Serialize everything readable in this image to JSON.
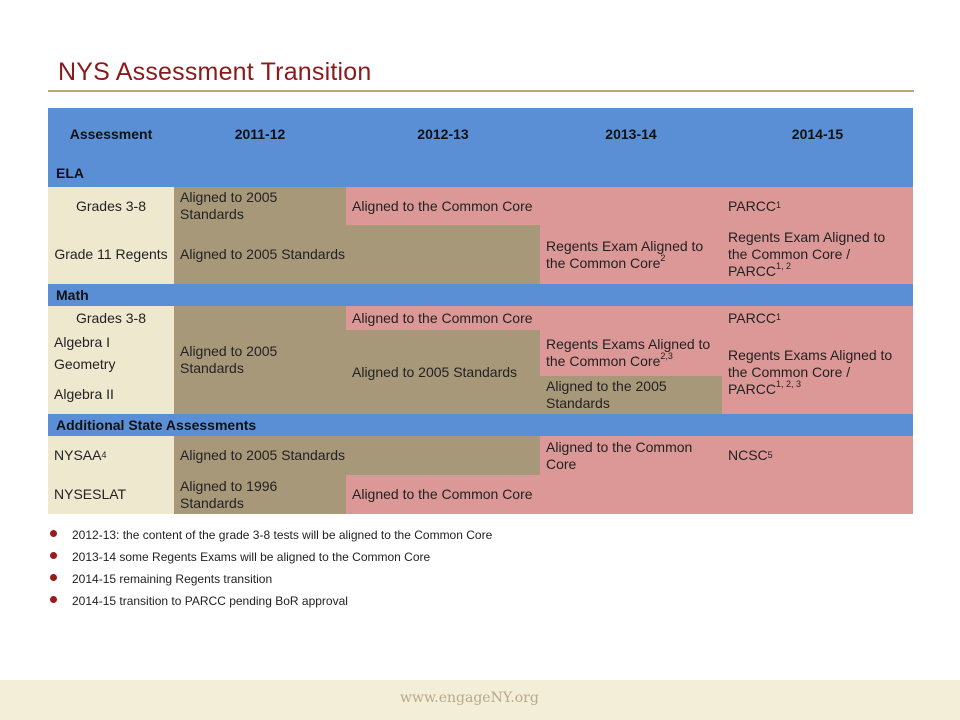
{
  "slide": {
    "title": "NYS Assessment Transition",
    "footer_url": "www.engageNY.org"
  },
  "table": {
    "headers": [
      "Assessment",
      "2011-12",
      "2012-13",
      "2013-14",
      "2014-15"
    ],
    "sections": {
      "ela": "ELA",
      "math": "Math",
      "additional": "Additional  State Assessments"
    },
    "rows": {
      "ela_grades": {
        "label": "Grades 3-8",
        "c1": "Aligned to 2005 Standards",
        "c2": "Aligned to the Common Core",
        "c4": "PARCC",
        "c4_sup": "1"
      },
      "ela_regents": {
        "label": "Grade 11 Regents",
        "c1": "Aligned to 2005 Standards",
        "c3": "Regents Exam Aligned to the Common Core",
        "c3_sup": "2",
        "c4": "Regents Exam Aligned to the Common Core / PARCC",
        "c4_sup": "1, 2"
      },
      "math_grades": {
        "label": "Grades 3-8",
        "c2": "Aligned to the Common Core",
        "c4": "PARCC",
        "c4_sup": "1"
      },
      "math_regents": {
        "label_alg1": "Algebra I",
        "label_geo": "Geometry",
        "label_alg2": "Algebra II",
        "c1": "Aligned to 2005 Standards",
        "c2": "Aligned to 2005 Standards",
        "c3_top": "Regents Exams Aligned to the Common Core",
        "c3_top_sup": "2,3",
        "c3_bottom": "Aligned to the 2005 Standards",
        "c4": "Regents Exams Aligned to the Common Core / PARCC",
        "c4_sup": "1, 2, 3"
      },
      "nysaa": {
        "label": "NYSAA",
        "label_sup": "4",
        "c1": "Aligned to 2005 Standards",
        "c3": "Aligned to the Common Core",
        "c4": "NCSC",
        "c4_sup": "5"
      },
      "nyseslat": {
        "label": "NYSESLAT",
        "c1": "Aligned to 1996 Standards",
        "c2": "Aligned to the Common Core"
      }
    }
  },
  "bullets": [
    "2012-13: the content of the grade 3-8 tests will be aligned to the Common  Core",
    "2013-14 some Regents Exams  will be aligned to the Common  Core",
    "2014-15 remaining Regents transition",
    "2014-15 transition to PARCC  pending BoR approval"
  ],
  "colors": {
    "title": "#8b1a1a",
    "header_blue": "#5a8fd6",
    "cream": "#eee8cf",
    "tan": "#a8987a",
    "pink": "#dc9896",
    "bullet": "#9a1b1b"
  }
}
